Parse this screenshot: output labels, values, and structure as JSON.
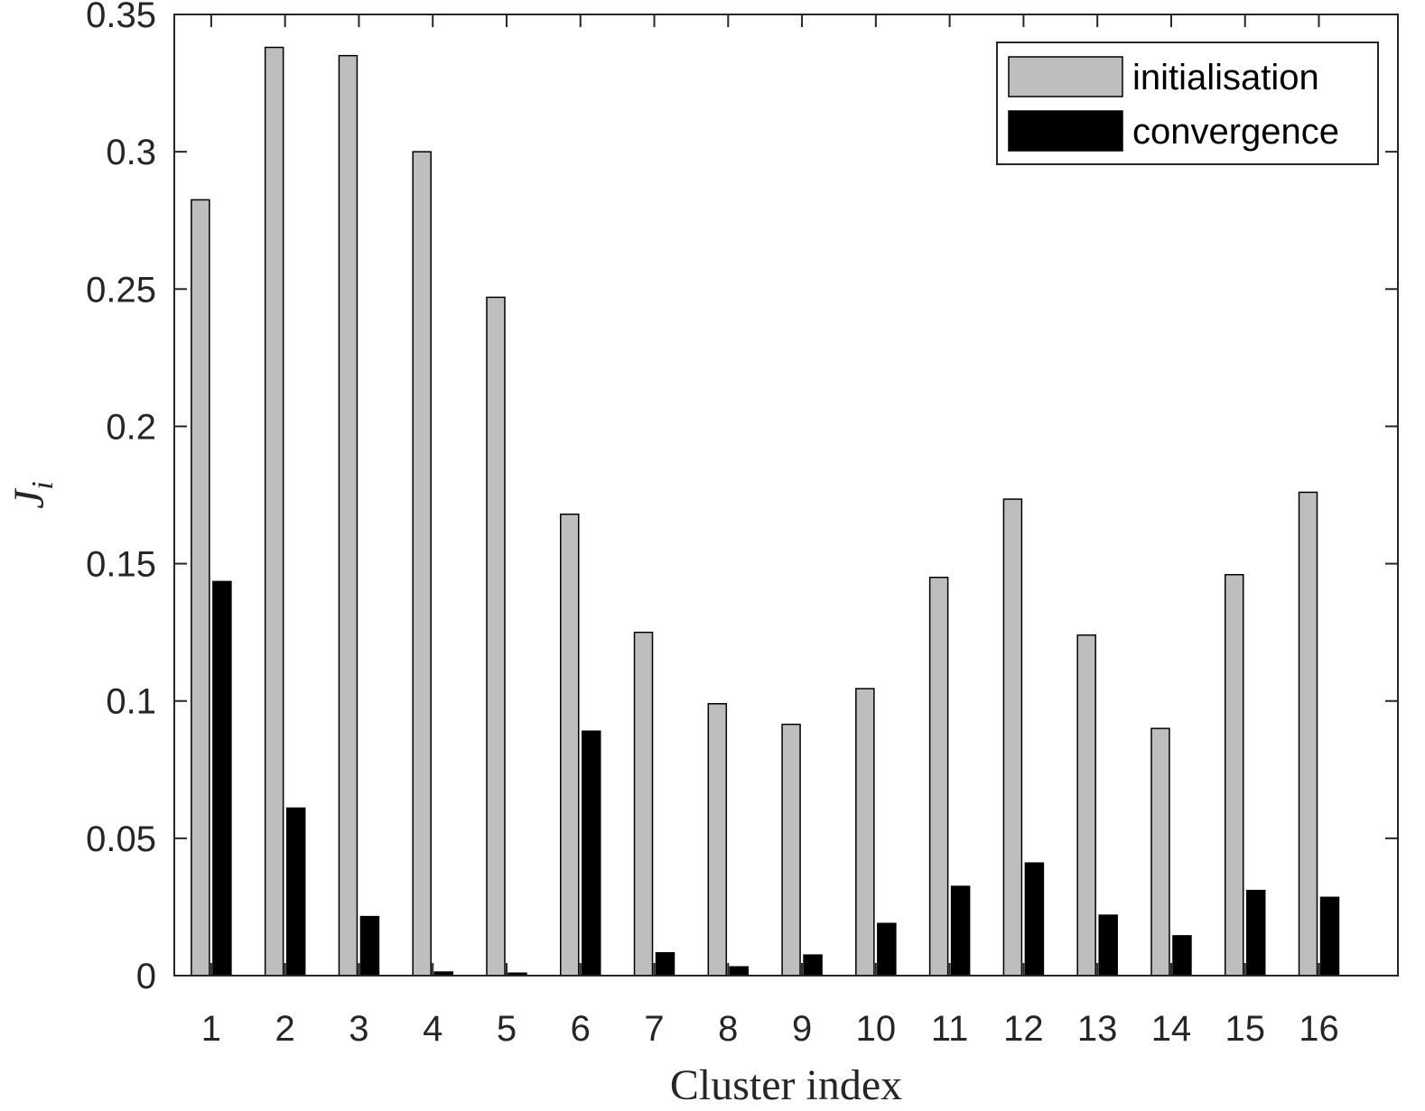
{
  "chart_data": {
    "type": "bar",
    "xlabel": "Cluster index",
    "ylabel": "J",
    "ylabel_subscript": "i",
    "categories": [
      "1",
      "2",
      "3",
      "4",
      "5",
      "6",
      "7",
      "8",
      "9",
      "10",
      "11",
      "12",
      "13",
      "14",
      "15",
      "16"
    ],
    "series": [
      {
        "name": "initialisation",
        "color": "#bebebe",
        "values": [
          0.2825,
          0.338,
          0.335,
          0.3,
          0.247,
          0.168,
          0.125,
          0.099,
          0.0915,
          0.1045,
          0.145,
          0.1735,
          0.124,
          0.09,
          0.146,
          0.176
        ]
      },
      {
        "name": "convergence",
        "color": "#000000",
        "values": [
          0.1435,
          0.061,
          0.0215,
          0.0013,
          0.0009,
          0.089,
          0.0083,
          0.0032,
          0.0075,
          0.019,
          0.0325,
          0.041,
          0.022,
          0.0145,
          0.031,
          0.0285
        ]
      }
    ],
    "ylim": [
      0,
      0.35
    ],
    "yticks": [
      "0",
      "0.05",
      "0.1",
      "0.15",
      "0.2",
      "0.25",
      "0.3",
      "0.35"
    ],
    "grid": false,
    "legend_position": "top-right"
  }
}
